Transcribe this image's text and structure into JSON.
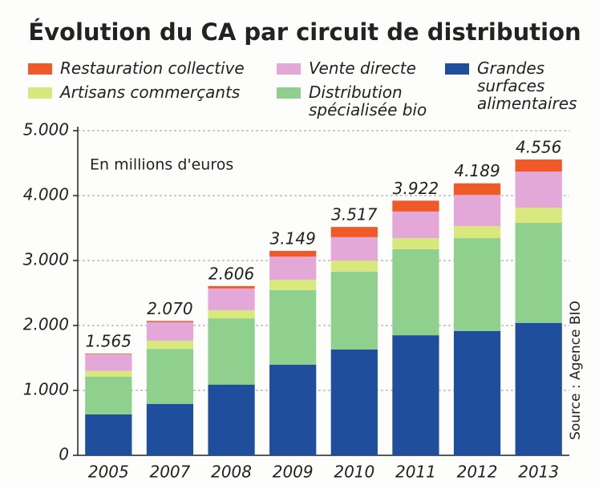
{
  "chart_data": {
    "type": "stacked_bar",
    "title": "Évolution du CA par circuit de distribution",
    "subtitle": "En millions d'euros",
    "source": "Source : Agence BIO",
    "categories": [
      "2005",
      "2007",
      "2008",
      "2009",
      "2010",
      "2011",
      "2012",
      "2013"
    ],
    "series": [
      {
        "name": "Grandes surfaces alimentaires",
        "color": "#1f4e9c",
        "values": [
          630,
          790,
          1090,
          1395,
          1630,
          1850,
          1915,
          2040
        ]
      },
      {
        "name": "Distribution spécialisée bio",
        "color": "#8fd08f",
        "values": [
          580,
          850,
          1020,
          1150,
          1200,
          1325,
          1430,
          1540
        ]
      },
      {
        "name": "Artisans commerçants",
        "color": "#d9e87c",
        "values": [
          90,
          125,
          125,
          160,
          170,
          170,
          185,
          235
        ]
      },
      {
        "name": "Vente directe",
        "color": "#e3a8d8",
        "values": [
          255,
          285,
          335,
          355,
          360,
          410,
          480,
          555
        ]
      },
      {
        "name": "Restauration collective",
        "color": "#f05a28",
        "values": [
          10,
          20,
          36,
          89,
          157,
          167,
          179,
          186
        ]
      }
    ],
    "totals": {
      "values": [
        1565,
        2070,
        2606,
        3149,
        3517,
        3922,
        4189,
        4556
      ],
      "value_labels": [
        "1.565",
        "2.070",
        "2.606",
        "3.149",
        "3.517",
        "3.922",
        "4.189",
        "4.556"
      ]
    },
    "ylim": [
      0,
      5000
    ],
    "yticks": [
      0,
      {
        "value": 1000,
        "label": "1.000"
      },
      {
        "value": 2000,
        "label": "2.000"
      },
      {
        "value": 3000,
        "label": "3.000"
      },
      {
        "value": 4000,
        "label": "4.000"
      },
      {
        "value": 5000,
        "label": "5.000"
      }
    ],
    "grid": true
  }
}
